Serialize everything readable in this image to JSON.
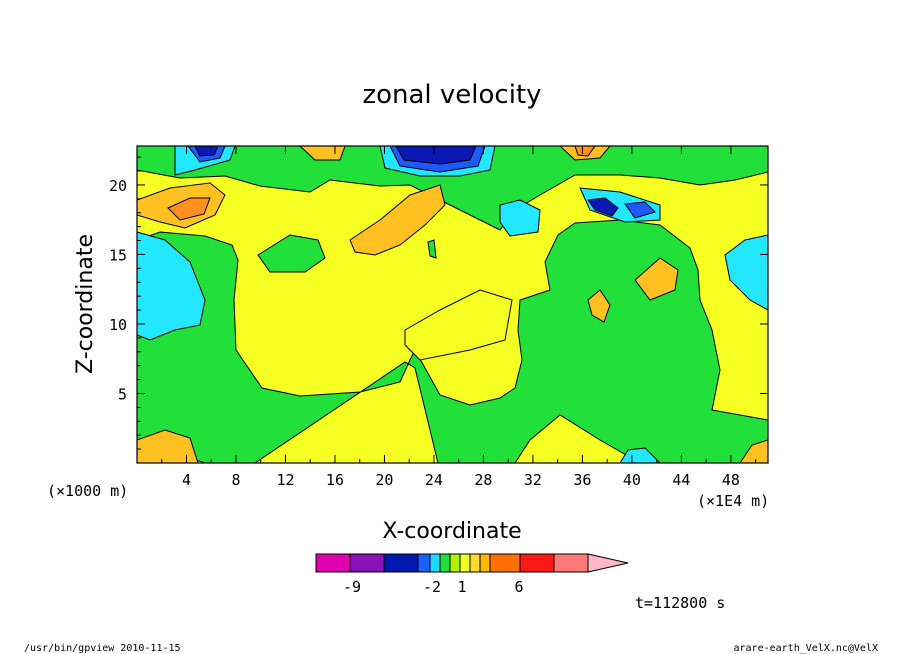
{
  "chart_data": {
    "type": "contour",
    "title": "zonal velocity",
    "xlabel": "X-coordinate",
    "ylabel": "Z-coordinate",
    "x_unit": "(×1E4 m)",
    "y_unit": "(×1000 m)",
    "xlim": [
      0,
      51
    ],
    "ylim": [
      0,
      22.8
    ],
    "x_ticks": [
      "4",
      "8",
      "12",
      "16",
      "20",
      "24",
      "28",
      "32",
      "36",
      "40",
      "44",
      "48"
    ],
    "y_ticks": [
      "5",
      "10",
      "15",
      "20"
    ],
    "colorbar": {
      "levels": [
        "-9",
        "-2",
        "1",
        "6"
      ],
      "colors": [
        "#e000b0",
        "#8a10b8",
        "#0018b0",
        "#1860ff",
        "#20d8ff",
        "#20e040",
        "#b0f000",
        "#f0ff20",
        "#ffd830",
        "#ffb800",
        "#ff7000",
        "#ff1818",
        "#ff7878",
        "#ffb8c8"
      ]
    },
    "fields": {
      "positive_weak": "#f5ff22",
      "near_zero": "#22e03a",
      "negative_weak": "#22e8ff",
      "negative_mid": "#1e5aff",
      "negative_strong": "#0a18b4",
      "positive_mid": "#ffc020",
      "positive_strong": "#ff9020"
    },
    "time_label": "t=112800 s"
  },
  "footer": {
    "left": "/usr/bin/gpview   2010-11-15",
    "right": "arare-earth_VelX.nc@VelX"
  }
}
